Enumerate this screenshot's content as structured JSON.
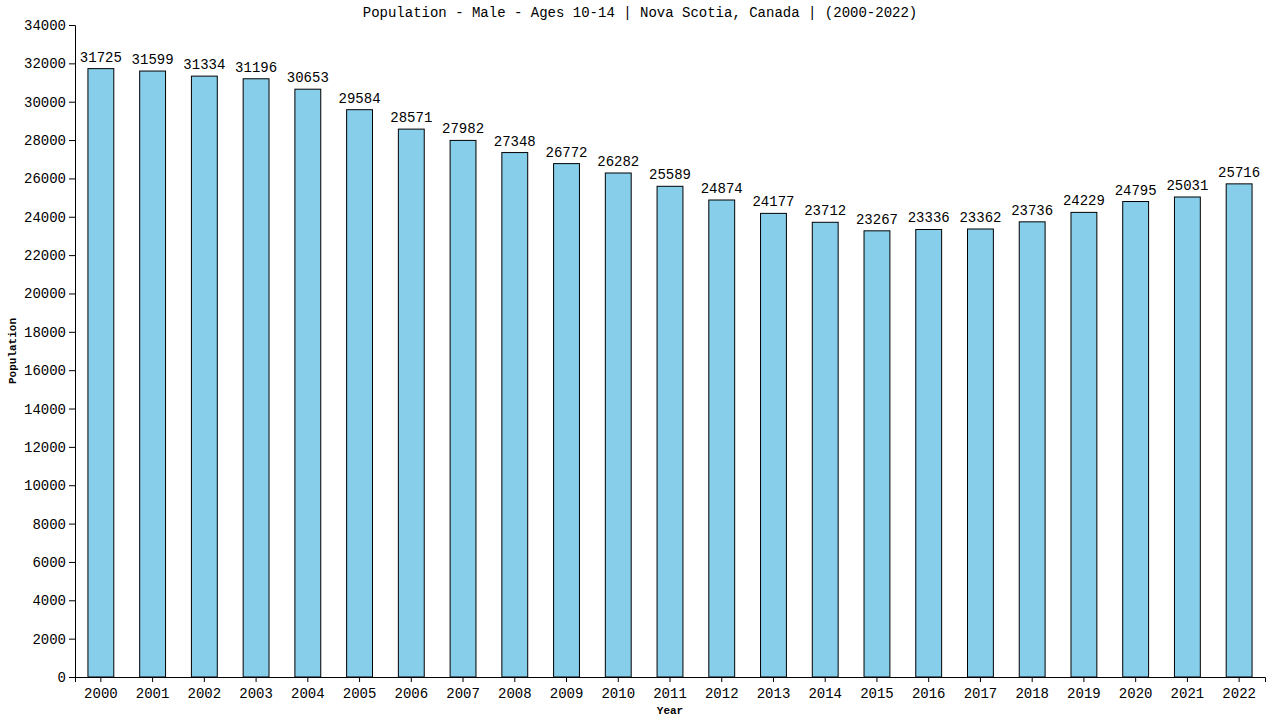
{
  "chart_data": {
    "type": "bar",
    "title": "Population - Male - Ages 10-14 | Nova Scotia, Canada |  (2000-2022)",
    "x_label": "Year",
    "y_label": "Population",
    "categories": [
      "2000",
      "2001",
      "2002",
      "2003",
      "2004",
      "2005",
      "2006",
      "2007",
      "2008",
      "2009",
      "2010",
      "2011",
      "2012",
      "2013",
      "2014",
      "2015",
      "2016",
      "2017",
      "2018",
      "2019",
      "2020",
      "2021",
      "2022"
    ],
    "values": [
      31725,
      31599,
      31334,
      31196,
      30653,
      29584,
      28571,
      27982,
      27348,
      26772,
      26282,
      25589,
      24874,
      24177,
      23712,
      23267,
      23336,
      23362,
      23736,
      24229,
      24795,
      25031,
      25716
    ],
    "color": "#87ceeb",
    "ylim": [
      0,
      34000
    ],
    "yticks": [
      0,
      2000,
      4000,
      6000,
      8000,
      10000,
      12000,
      14000,
      16000,
      18000,
      20000,
      22000,
      24000,
      26000,
      28000,
      30000,
      32000,
      34000
    ],
    "grid": false,
    "data_labels": true
  }
}
